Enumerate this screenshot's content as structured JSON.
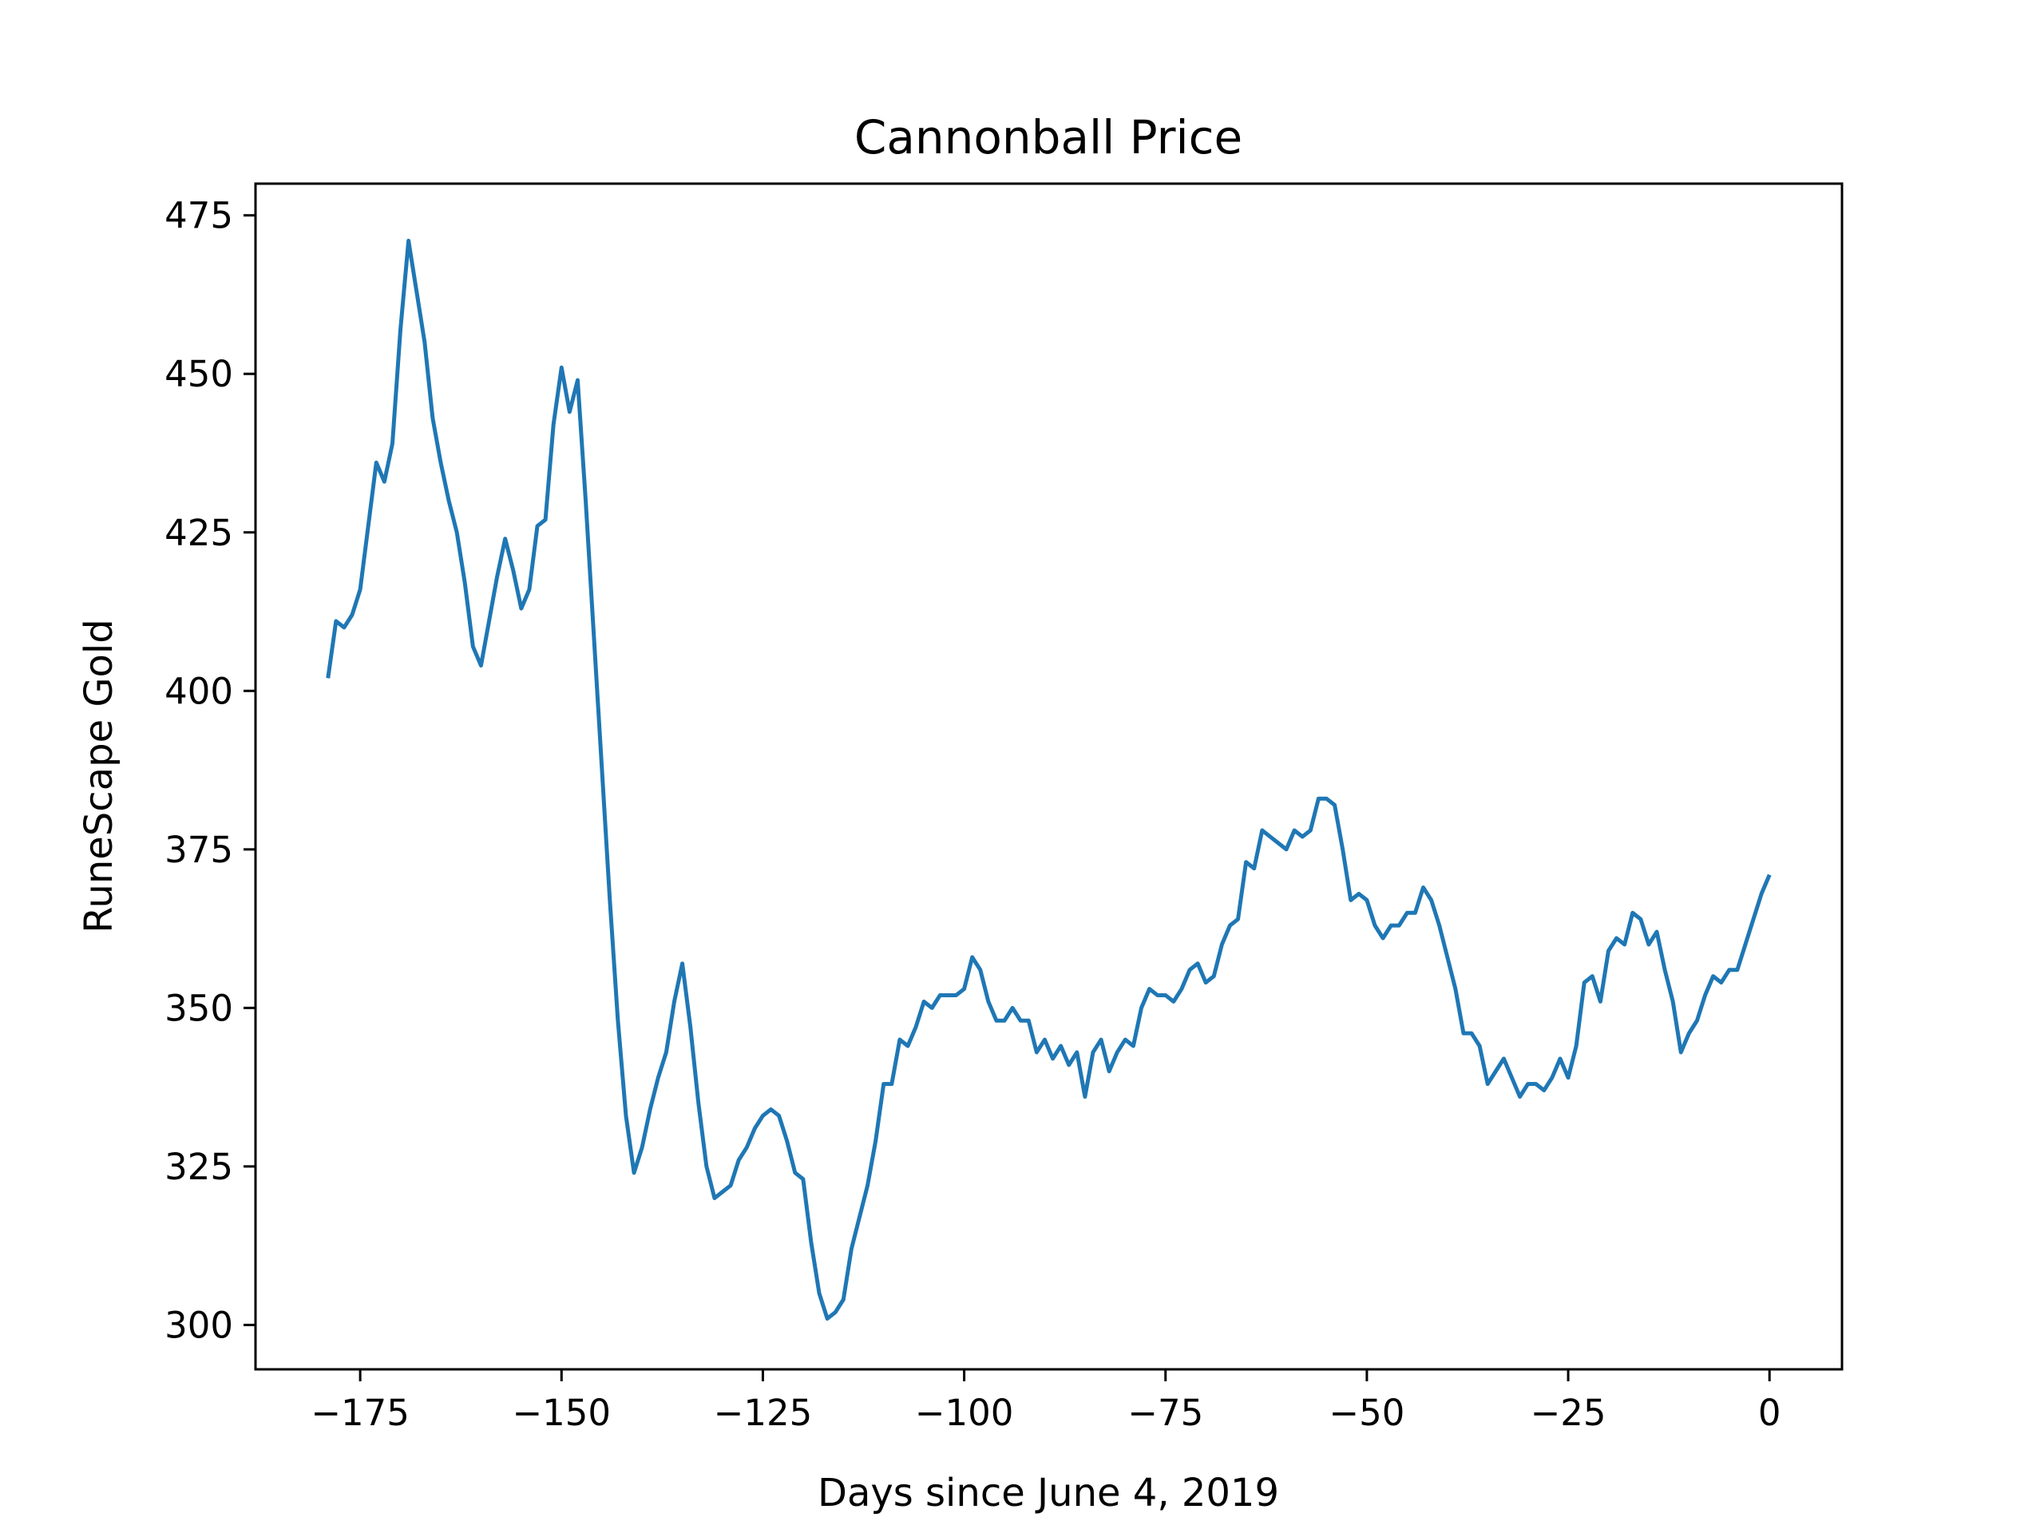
{
  "chart_data": {
    "type": "line",
    "title": "Cannonball Price",
    "xlabel": "Days since June 4, 2019",
    "ylabel": "RuneScape Gold",
    "xlim": [
      -188,
      9
    ],
    "ylim": [
      293,
      480
    ],
    "xticks": [
      -175,
      -150,
      -125,
      -100,
      -75,
      -50,
      -25,
      0
    ],
    "xtick_labels": [
      "−175",
      "−150",
      "−125",
      "−100",
      "−75",
      "−50",
      "−25",
      "0"
    ],
    "yticks": [
      300,
      325,
      350,
      375,
      400,
      425,
      450,
      475
    ],
    "ytick_labels": [
      "300",
      "325",
      "350",
      "375",
      "400",
      "425",
      "450",
      "475"
    ],
    "grid": false,
    "legend": "none",
    "series": [
      {
        "color": "#1f77b4",
        "x": [
          -179,
          -178,
          -177,
          -176,
          -175,
          -174,
          -173,
          -172,
          -171,
          -170,
          -169,
          -168,
          -167,
          -166,
          -165,
          -164,
          -163,
          -162,
          -161,
          -160,
          -159,
          -158,
          -157,
          -156,
          -155,
          -154,
          -153,
          -152,
          -151,
          -150,
          -149,
          -148,
          -147,
          -146,
          -145,
          -144,
          -143,
          -142,
          -141,
          -140,
          -139,
          -138,
          -137,
          -136,
          -135,
          -134,
          -133,
          -132,
          -131,
          -130,
          -129,
          -128,
          -127,
          -126,
          -125,
          -124,
          -123,
          -122,
          -121,
          -120,
          -119,
          -118,
          -117,
          -116,
          -115,
          -114,
          -113,
          -112,
          -111,
          -110,
          -109,
          -108,
          -107,
          -106,
          -105,
          -104,
          -103,
          -102,
          -101,
          -100,
          -99,
          -98,
          -97,
          -96,
          -95,
          -94,
          -93,
          -92,
          -91,
          -90,
          -89,
          -88,
          -87,
          -86,
          -85,
          -84,
          -83,
          -82,
          -81,
          -80,
          -79,
          -78,
          -77,
          -76,
          -75,
          -74,
          -73,
          -72,
          -71,
          -70,
          -69,
          -68,
          -67,
          -66,
          -65,
          -64,
          -63,
          -62,
          -61,
          -60,
          -59,
          -58,
          -57,
          -56,
          -55,
          -54,
          -53,
          -52,
          -51,
          -50,
          -49,
          -48,
          -47,
          -46,
          -45,
          -44,
          -43,
          -42,
          -41,
          -40,
          -39,
          -38,
          -37,
          -36,
          -35,
          -34,
          -33,
          -32,
          -31,
          -30,
          -29,
          -28,
          -27,
          -26,
          -25,
          -24,
          -23,
          -22,
          -21,
          -20,
          -19,
          -18,
          -17,
          -16,
          -15,
          -14,
          -13,
          -12,
          -11,
          -10,
          -9,
          -8,
          -7,
          -6,
          -5,
          -4,
          -3,
          -2,
          -1,
          0
        ],
        "y": [
          402,
          411,
          410,
          412,
          416,
          426,
          436,
          433,
          439,
          457,
          471,
          463,
          455,
          443,
          436,
          430,
          425,
          417,
          407,
          404,
          411,
          418,
          424,
          419,
          413,
          416,
          426,
          427,
          442,
          451,
          444,
          449,
          430,
          409,
          388,
          367,
          348,
          333,
          324,
          328,
          334,
          339,
          343,
          351,
          357,
          347,
          335,
          325,
          320,
          321,
          322,
          326,
          328,
          331,
          333,
          334,
          333,
          329,
          324,
          323,
          313,
          305,
          301,
          302,
          304,
          312,
          317,
          322,
          329,
          338,
          338,
          345,
          344,
          347,
          351,
          350,
          352,
          352,
          352,
          353,
          358,
          356,
          351,
          348,
          348,
          350,
          348,
          348,
          343,
          345,
          342,
          344,
          341,
          343,
          336,
          343,
          345,
          340,
          343,
          345,
          344,
          350,
          353,
          352,
          352,
          351,
          353,
          356,
          357,
          354,
          355,
          360,
          363,
          364,
          373,
          372,
          378,
          377,
          376,
          375,
          378,
          377,
          378,
          383,
          383,
          382,
          375,
          367,
          368,
          367,
          363,
          361,
          363,
          363,
          365,
          365,
          369,
          367,
          363,
          358,
          353,
          346,
          346,
          344,
          338,
          340,
          342,
          339,
          336,
          338,
          338,
          337,
          339,
          342,
          339,
          344,
          354,
          355,
          351,
          359,
          361,
          360,
          365,
          364,
          360,
          362,
          356,
          351,
          343,
          346,
          348,
          352,
          355,
          354,
          356,
          356,
          360,
          364,
          368,
          371
        ]
      }
    ]
  }
}
